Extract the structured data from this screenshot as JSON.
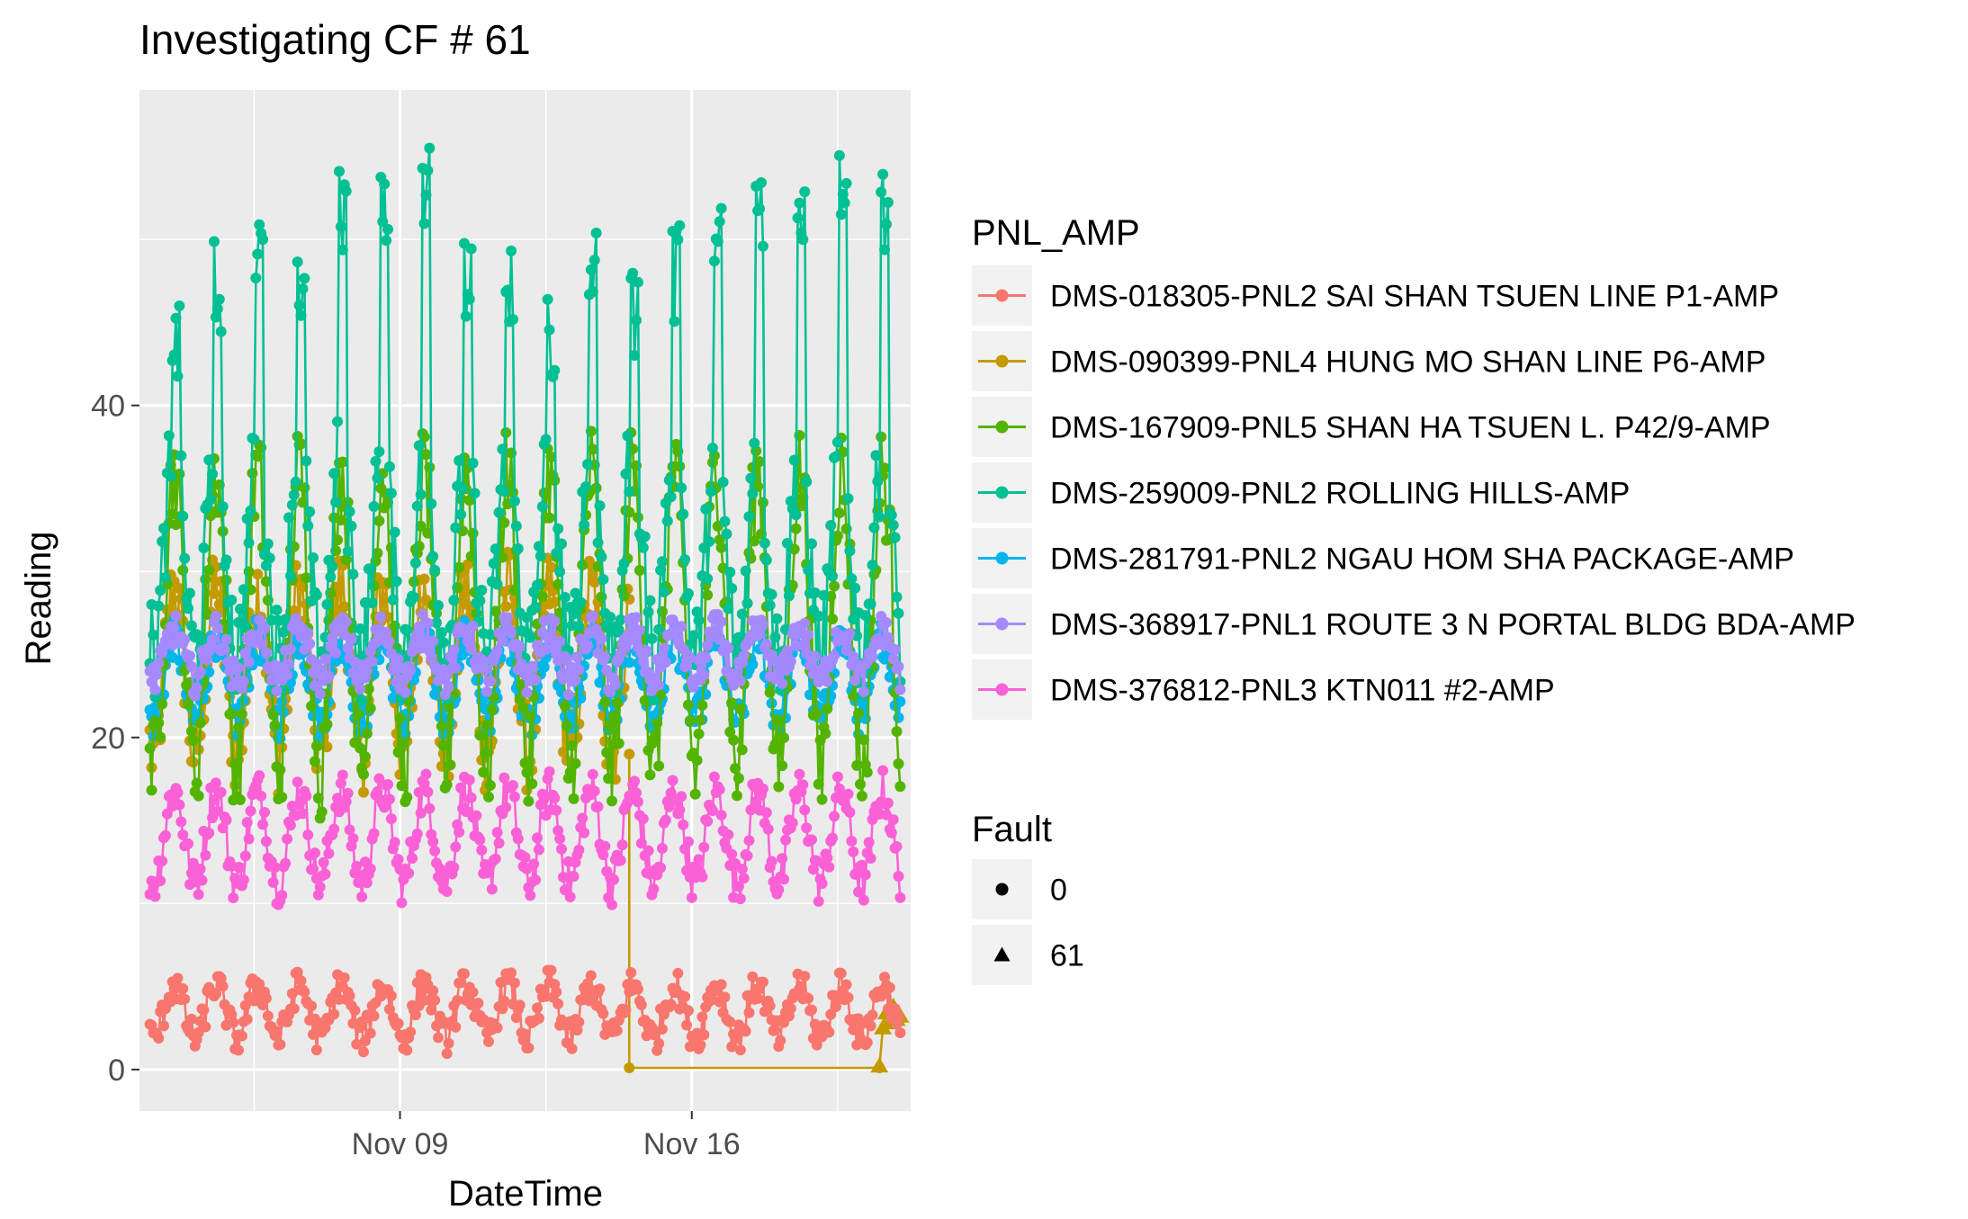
{
  "chart_data": {
    "type": "line",
    "title": "Investigating CF # 61",
    "xlabel": "DateTime",
    "ylabel": "Reading",
    "x_range": [
      "2016-11-02T18:00",
      "2016-11-21T06:00"
    ],
    "ylim": [
      -2.5,
      59
    ],
    "x_ticks": [
      {
        "date": "2016-11-09",
        "label": "Nov 09"
      },
      {
        "date": "2016-11-16",
        "label": "Nov 16"
      }
    ],
    "y_ticks": [
      0,
      20,
      40
    ],
    "grid": true,
    "panel_background": "#ebebeb",
    "legend_position": "right",
    "legends": {
      "color": {
        "title": "PNL_AMP",
        "entries": [
          {
            "label": "DMS-018305-PNL2 SAI SHAN TSUEN LINE P1-AMP",
            "color": "#F8766D"
          },
          {
            "label": "DMS-090399-PNL4 HUNG MO SHAN LINE P6-AMP",
            "color": "#C49A00"
          },
          {
            "label": "DMS-167909-PNL5 SHAN HA TSUEN L. P42/9-AMP",
            "color": "#53B400"
          },
          {
            "label": "DMS-259009-PNL2 ROLLING HILLS-AMP",
            "color": "#00C094"
          },
          {
            "label": "DMS-281791-PNL2 NGAU HOM SHA PACKAGE-AMP",
            "color": "#00B6EB"
          },
          {
            "label": "DMS-368917-PNL1 ROUTE 3 N PORTAL BLDG BDA-AMP",
            "color": "#A58AFF"
          },
          {
            "label": "DMS-376812-PNL3 KTN011 #2-AMP",
            "color": "#FB61D7"
          }
        ]
      },
      "shape": {
        "title": "Fault",
        "entries": [
          {
            "label": "0",
            "shape": "circle"
          },
          {
            "label": "61",
            "shape": "triangle"
          }
        ]
      }
    },
    "series": [
      {
        "name": "DMS-018305-PNL2 SAI SHAN TSUEN LINE P1-AMP",
        "shape": "circle",
        "daily": {
          "base": 3.5,
          "amp": 1.6,
          "noise": 1.0,
          "min": 0.5,
          "max": 7.5
        }
      },
      {
        "name": "DMS-090399-PNL4 HUNG MO SHAN LINE P6-AMP",
        "shape": "circle",
        "daily": {
          "base": 24,
          "amp": 5,
          "noise": 2.5,
          "min": 15,
          "max": 36
        },
        "until": "2016-11-14T12:00",
        "segments": [
          {
            "x": [
              "2016-11-14T12:00",
              "2016-11-14T12:00",
              "2016-11-20T12:00"
            ],
            "y": [
              19,
              0.1,
              0.1
            ]
          }
        ]
      },
      {
        "name": "DMS-090399-PNL4 HUNG MO SHAN LINE P6-AMP",
        "shape": "triangle",
        "fault": 61,
        "x": [
          "2016-11-20T12:00",
          "2016-11-20T14:00",
          "2016-11-20T16:00",
          "2016-11-20T18:00",
          "2016-11-20T20:00",
          "2016-11-20T22:00",
          "2016-11-21T00:00"
        ],
        "y": [
          0.2,
          2.5,
          3.4,
          2.8,
          3.8,
          3.0,
          3.2
        ]
      },
      {
        "name": "DMS-167909-PNL5 SHAN HA TSUEN L. P42/9-AMP",
        "shape": "circle",
        "daily": {
          "base": 27,
          "amp": 9,
          "noise": 3,
          "min": 13,
          "max": 48
        }
      },
      {
        "name": "DMS-259009-PNL2 ROLLING HILLS-AMP",
        "shape": "circle",
        "daily_peaks": [
          47,
          50,
          52,
          51,
          55,
          54,
          56,
          51,
          50,
          47,
          51,
          49,
          51,
          54,
          55,
          55,
          56,
          55
        ],
        "daily": {
          "base": 31,
          "amp": 6,
          "noise": 3,
          "min": 14,
          "max": 56
        }
      },
      {
        "name": "DMS-281791-PNL2 NGAU HOM SHA PACKAGE-AMP",
        "shape": "circle",
        "daily": {
          "base": 23.5,
          "amp": 2.5,
          "noise": 1.2,
          "min": 17.5,
          "max": 28
        }
      },
      {
        "name": "DMS-368917-PNL1 ROUTE 3 N PORTAL BLDG BDA-AMP",
        "shape": "circle",
        "daily": {
          "base": 25,
          "amp": 1.5,
          "noise": 1.0,
          "min": 18,
          "max": 38
        }
      },
      {
        "name": "DMS-376812-PNL3 KTN011 #2-AMP",
        "shape": "circle",
        "daily": {
          "base": 14,
          "amp": 2.8,
          "noise": 1.3,
          "min": 7,
          "max": 19
        }
      }
    ]
  }
}
